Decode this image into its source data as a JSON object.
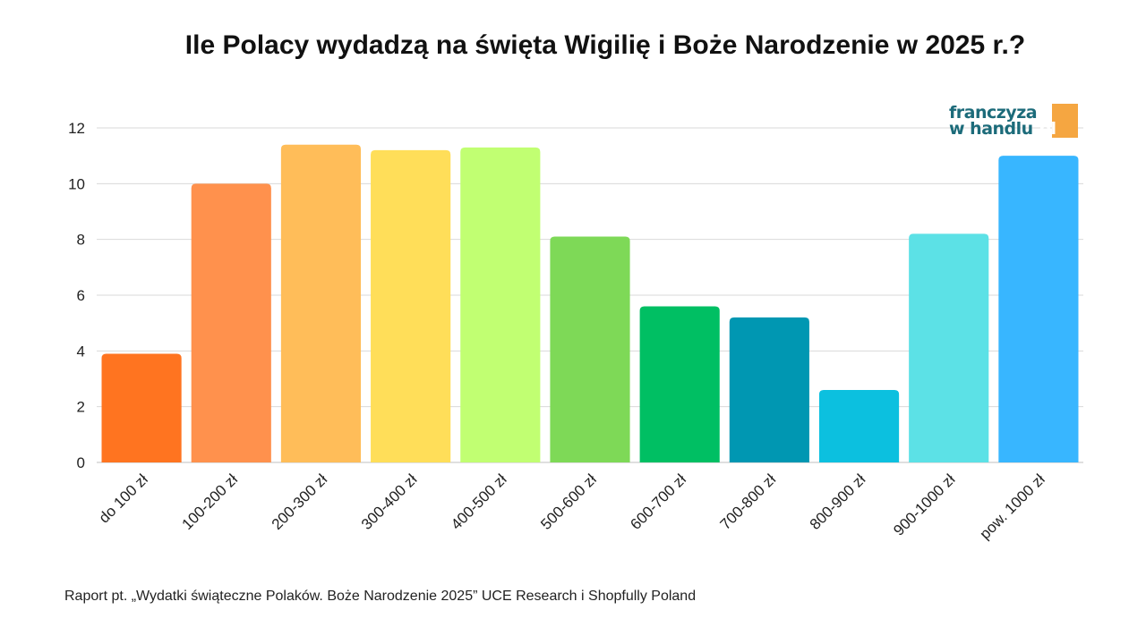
{
  "title": "Ile Polacy wydadzą na święta Wigilię i Boże Narodzenie w 2025 r.?",
  "source": "Raport pt. „Wydatki świąteczne Polaków. Boże Narodzenie 2025” UCE Research i Shopfully Poland",
  "logo": {
    "line1": "franczyza",
    "line2": "w handlu",
    "tld": ".pl"
  },
  "chart_data": {
    "type": "bar",
    "title": "Ile Polacy wydadzą na święta Wigilię i Boże Narodzenie w 2025 r.?",
    "xlabel": "",
    "ylabel": "",
    "categories": [
      "do 100 zł",
      "100-200 zł",
      "200-300 zł",
      "300-400 zł",
      "400-500 zł",
      "500-600 zł",
      "600-700 zł",
      "700-800 zł",
      "800-900 zł",
      "900-1000 zł",
      "pow. 1000 zł"
    ],
    "values": [
      3.9,
      10.0,
      11.4,
      11.2,
      11.3,
      8.1,
      5.6,
      5.2,
      2.6,
      8.2,
      11.0
    ],
    "colors": [
      "#ff7420",
      "#ff914d",
      "#ffbd59",
      "#ffde59",
      "#c1ff72",
      "#7ed957",
      "#00bf63",
      "#0097b2",
      "#0cc0df",
      "#5ce1e6",
      "#38b6ff"
    ],
    "ylim": [
      0,
      12
    ],
    "yticks": [
      0,
      2,
      4,
      6,
      8,
      10,
      12
    ],
    "grid": true,
    "legend": "none"
  }
}
